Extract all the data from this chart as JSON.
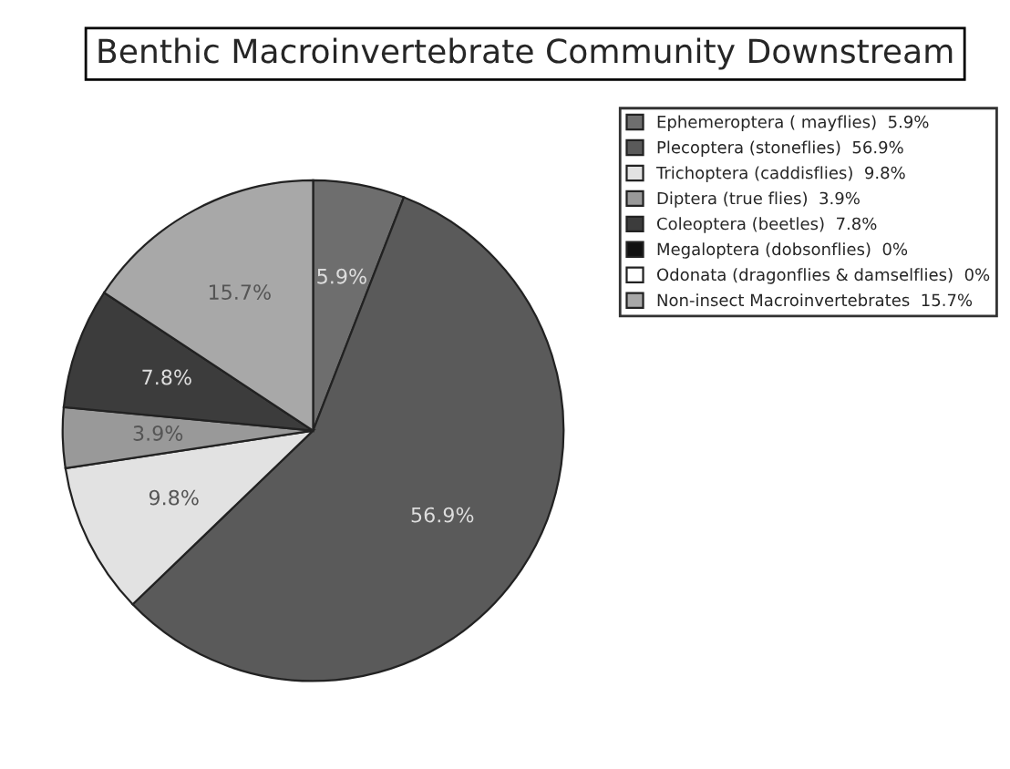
{
  "chart_data": {
    "type": "pie",
    "title": "Benthic Macroinvertebrate Community Downstream",
    "categories": [
      "Ephemeroptera ( mayflies)  5.9%",
      "Plecoptera (stoneflies)  56.9%",
      "Trichoptera (caddisflies)  9.8%",
      "Diptera (true flies)  3.9%",
      "Coleoptera (beetles)  7.8%",
      "Megaloptera (dobsonflies)  0%",
      "Odonata (dragonflies & damselflies)  0%",
      "Non-insect Macroinvertebrates  15.7%"
    ],
    "values": [
      5.9,
      56.9,
      9.8,
      3.9,
      7.8,
      0,
      0,
      15.7
    ],
    "colors": [
      "#6e6e6e",
      "#5a5a5a",
      "#e2e2e2",
      "#999999",
      "#3c3c3c",
      "#111111",
      "#ffffff",
      "#a8a8a8"
    ],
    "value_labels": [
      "5.9%",
      "56.9%",
      "9.8%",
      "3.9%",
      "7.8%",
      null,
      null,
      "15.7%"
    ],
    "legend": "right"
  }
}
